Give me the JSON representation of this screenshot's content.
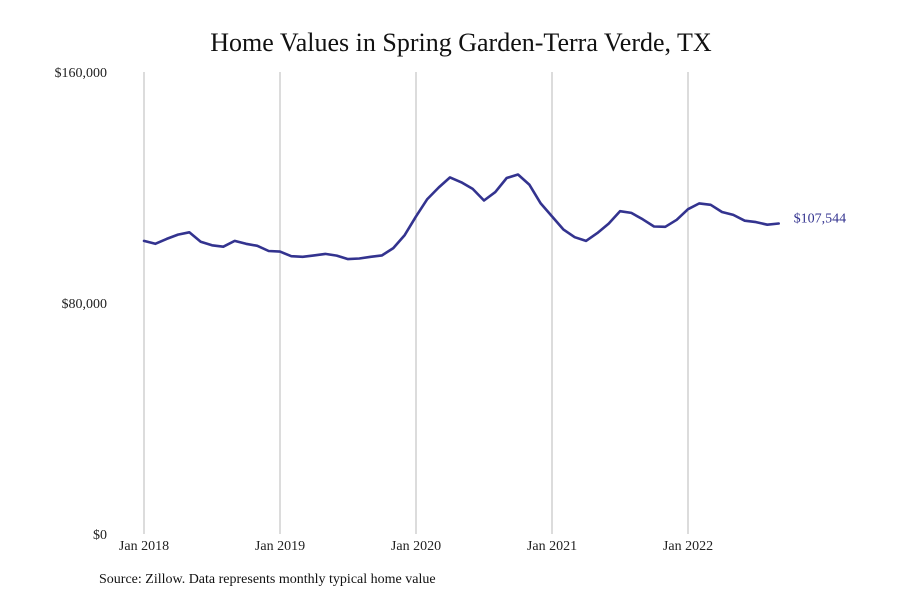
{
  "chart_data": {
    "type": "line",
    "title": "Home Values in Spring Garden-Terra Verde, TX",
    "ylim": [
      0,
      160000
    ],
    "y_ticks": [
      {
        "value": 0,
        "label": "$0"
      },
      {
        "value": 80000,
        "label": "$80,000"
      },
      {
        "value": 160000,
        "label": "$160,000"
      }
    ],
    "x_ticks": [
      {
        "date": "2018-01",
        "label": "Jan 2018"
      },
      {
        "date": "2019-01",
        "label": "Jan 2019"
      },
      {
        "date": "2020-01",
        "label": "Jan 2020"
      },
      {
        "date": "2021-01",
        "label": "Jan 2021"
      },
      {
        "date": "2022-01",
        "label": "Jan 2022"
      }
    ],
    "grid": {
      "vertical": true,
      "horizontal": false
    },
    "line_color": "#33338f",
    "end_label": "$107,544",
    "series": [
      {
        "x": [
          "2018-01",
          "2018-02",
          "2018-03",
          "2018-04",
          "2018-05",
          "2018-06",
          "2018-07",
          "2018-08",
          "2018-09",
          "2018-10",
          "2018-11",
          "2018-12",
          "2019-01",
          "2019-02",
          "2019-03",
          "2019-04",
          "2019-05",
          "2019-06",
          "2019-07",
          "2019-08",
          "2019-09",
          "2019-10",
          "2019-11",
          "2019-12",
          "2020-01",
          "2020-02",
          "2020-03",
          "2020-04",
          "2020-05",
          "2020-06",
          "2020-07",
          "2020-08",
          "2020-09",
          "2020-10",
          "2020-11",
          "2020-12",
          "2021-01",
          "2021-02",
          "2021-03",
          "2021-04",
          "2021-05",
          "2021-06",
          "2021-07",
          "2021-08",
          "2021-09",
          "2021-10",
          "2021-11",
          "2021-12",
          "2022-01",
          "2022-02",
          "2022-03",
          "2022-04",
          "2022-05",
          "2022-06",
          "2022-07",
          "2022-08",
          "2022-09"
        ],
        "values": [
          101500,
          100500,
          102200,
          103700,
          104500,
          101200,
          100000,
          99500,
          101500,
          100500,
          99800,
          98000,
          97800,
          96200,
          96000,
          96500,
          97000,
          96400,
          95200,
          95400,
          96000,
          96500,
          99000,
          103500,
          110000,
          116000,
          120000,
          123500,
          121800,
          119500,
          115500,
          118400,
          123300,
          124500,
          121000,
          114500,
          110000,
          105500,
          102800,
          101500,
          104200,
          107500,
          111800,
          111200,
          109000,
          106500,
          106400,
          108800,
          112500,
          114500,
          114000,
          111500,
          110500,
          108500,
          108000,
          107100,
          107544
        ]
      }
    ]
  },
  "source": "Source: Zillow. Data represents monthly typical home value"
}
